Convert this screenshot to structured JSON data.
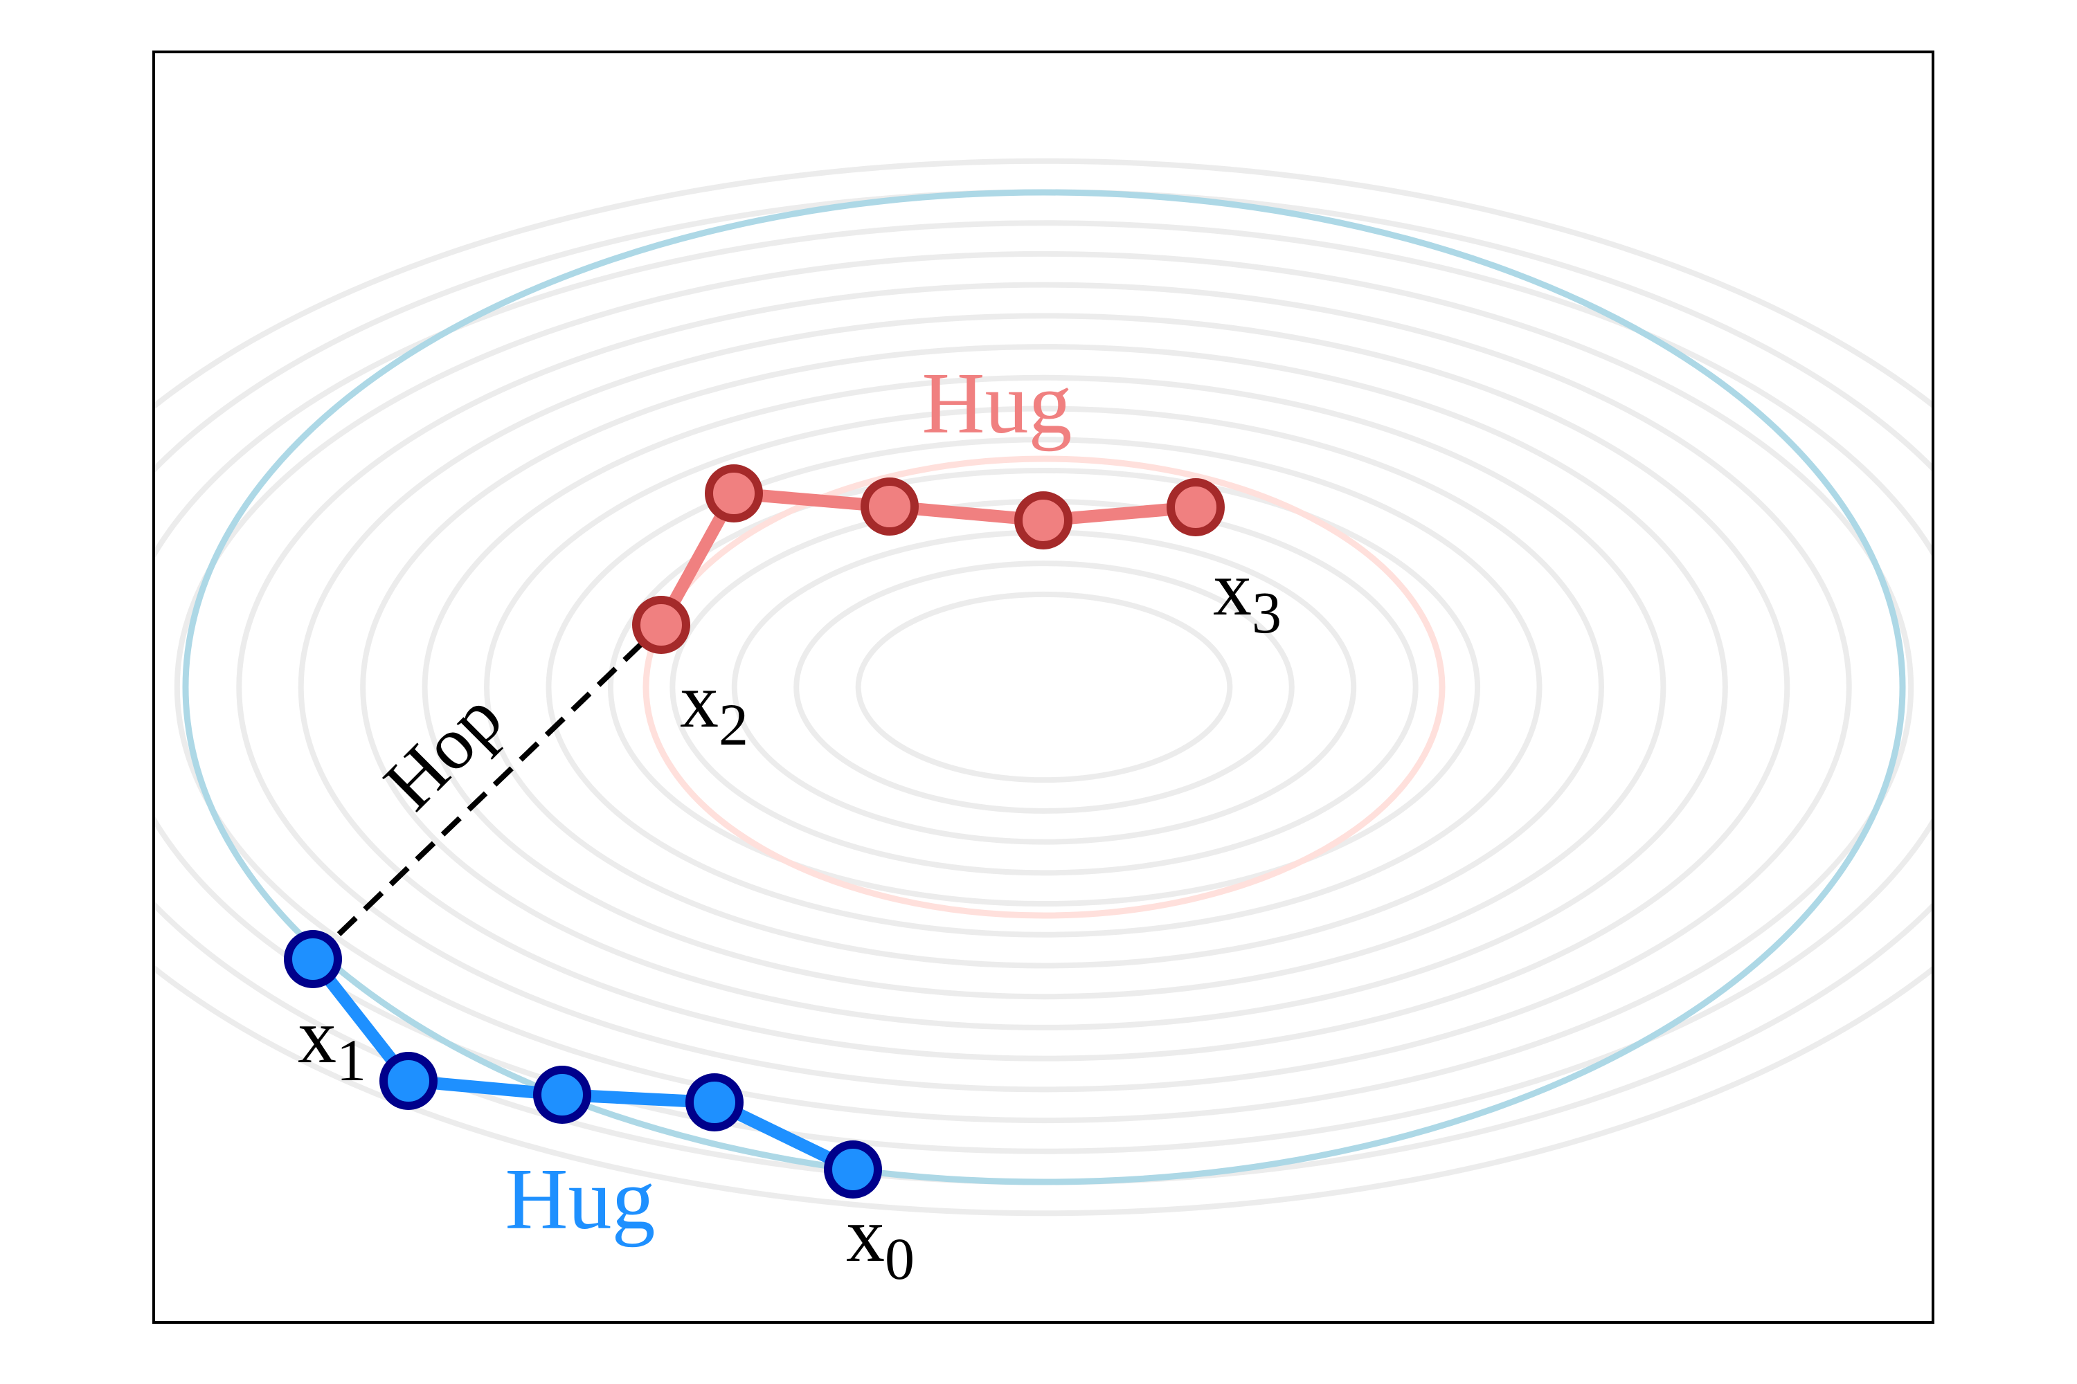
{
  "colors": {
    "contour_gray": "#ececec",
    "contour_blue": "#add8e6",
    "contour_pink": "#ffe0dc",
    "blue_line": "#1e90ff",
    "blue_point_fill": "#1e90ff",
    "blue_point_edge": "#00008b",
    "red_line": "#f08080",
    "red_point_fill": "#f08080",
    "red_point_edge": "#a52a2a",
    "hop_line": "#000000",
    "frame": "#000000",
    "label_black": "#000000"
  },
  "diagram": {
    "plot_type": "contour-trajectory",
    "background_contours": 15,
    "highlighted_blue_level": "outer ellipse",
    "highlighted_pink_level": "inner ellipse",
    "hug_blue_label": "Hug",
    "hug_red_label": "Hug",
    "hop_label": "Hop",
    "point_labels": {
      "x0": {
        "base": "x",
        "sub": "0"
      },
      "x1": {
        "base": "x",
        "sub": "1"
      },
      "x2": {
        "base": "x",
        "sub": "2"
      },
      "x3": {
        "base": "x",
        "sub": "3"
      }
    },
    "blue_path_points": 5,
    "red_path_points": 5
  }
}
